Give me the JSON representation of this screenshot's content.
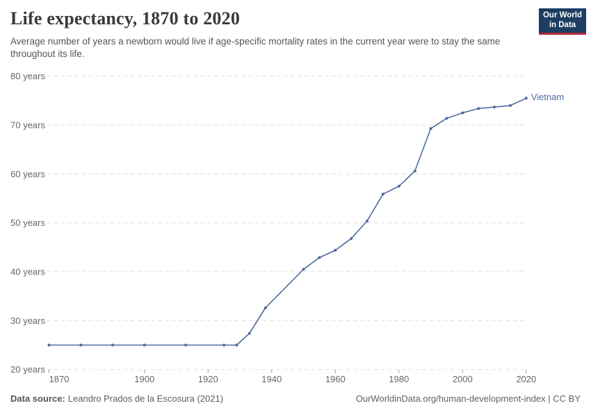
{
  "header": {
    "title": "Life expectancy, 1870 to 2020",
    "subtitle": "Average number of years a newborn would live if age-specific mortality rates in the current year were to stay the same throughout its life.",
    "logo": {
      "line1": "Our World",
      "line2": "in Data"
    }
  },
  "chart_data": {
    "type": "line",
    "title": "Life expectancy, 1870 to 2020",
    "x": [
      1870,
      1880,
      1890,
      1900,
      1913,
      1925,
      1929,
      1933,
      1938,
      1950,
      1955,
      1960,
      1965,
      1970,
      1975,
      1980,
      1985,
      1990,
      1995,
      2000,
      2005,
      2010,
      2015,
      2020
    ],
    "series": [
      {
        "name": "Vietnam",
        "color": "#4C6A9C",
        "values": [
          25,
          25,
          25,
          25,
          25,
          25,
          25,
          27.4,
          32.6,
          40.5,
          42.9,
          44.4,
          46.8,
          50.4,
          55.9,
          57.5,
          60.6,
          69.3,
          71.4,
          72.5,
          73.4,
          73.7,
          74.0,
          75.5
        ]
      }
    ],
    "xlabel": "",
    "ylabel": "",
    "x_ticks": [
      1870,
      1900,
      1920,
      1940,
      1960,
      1980,
      2000,
      2020
    ],
    "y_ticks": [
      20,
      30,
      40,
      50,
      60,
      70,
      80
    ],
    "y_tick_suffix": " years",
    "xlim": [
      1870,
      2020
    ],
    "ylim": [
      20,
      80
    ],
    "grid": "horizontal-dashed",
    "legend_position": "line-end-label"
  },
  "footer": {
    "source_label": "Data source:",
    "source_value": "Leandro Prados de la Escosura (2021)",
    "credit": "OurWorldinData.org/human-development-index | CC BY"
  },
  "colors": {
    "line": "#4C6A9C",
    "grid": "#dddddd",
    "axis_text": "#666666",
    "logo_bg": "#1d3d63",
    "logo_accent": "#a82a38"
  }
}
